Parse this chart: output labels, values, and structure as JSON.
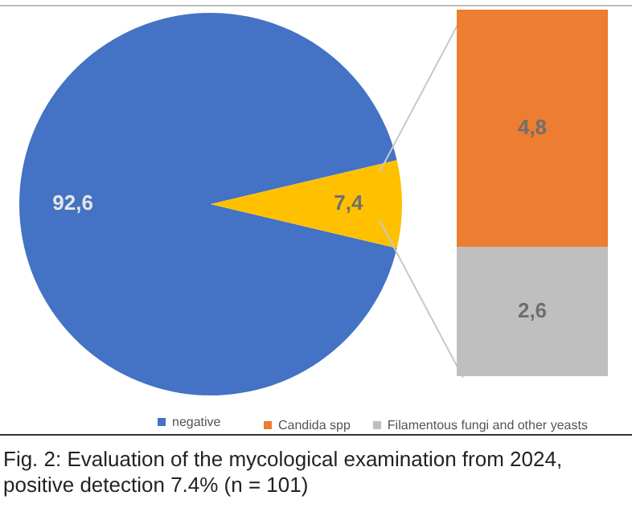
{
  "chart_data": [
    {
      "type": "pie",
      "categories": [
        "negative",
        null
      ],
      "values": [
        92.6,
        7.4
      ],
      "colors": [
        "#4472c4",
        "#ffc000"
      ],
      "value_labels": [
        "92,6",
        "7,4"
      ],
      "legend": "bottom",
      "annotations": [
        "Fig. 2: Evaluation of the mycological examination from 2024, positive detection 7.4% (n = 101)"
      ]
    },
    {
      "type": "bar",
      "stacked": true,
      "categories": [
        null
      ],
      "series": [
        {
          "name": "Filamentous fungi and other yeasts",
          "color": "#bfbfbf",
          "values": [
            2.6
          ],
          "value_labels": [
            "2,6"
          ]
        },
        {
          "name": "Candida spp",
          "color": "#ed7d31",
          "values": [
            4.8
          ],
          "value_labels": [
            "4,8"
          ]
        }
      ],
      "legend": "bottom"
    }
  ]
}
